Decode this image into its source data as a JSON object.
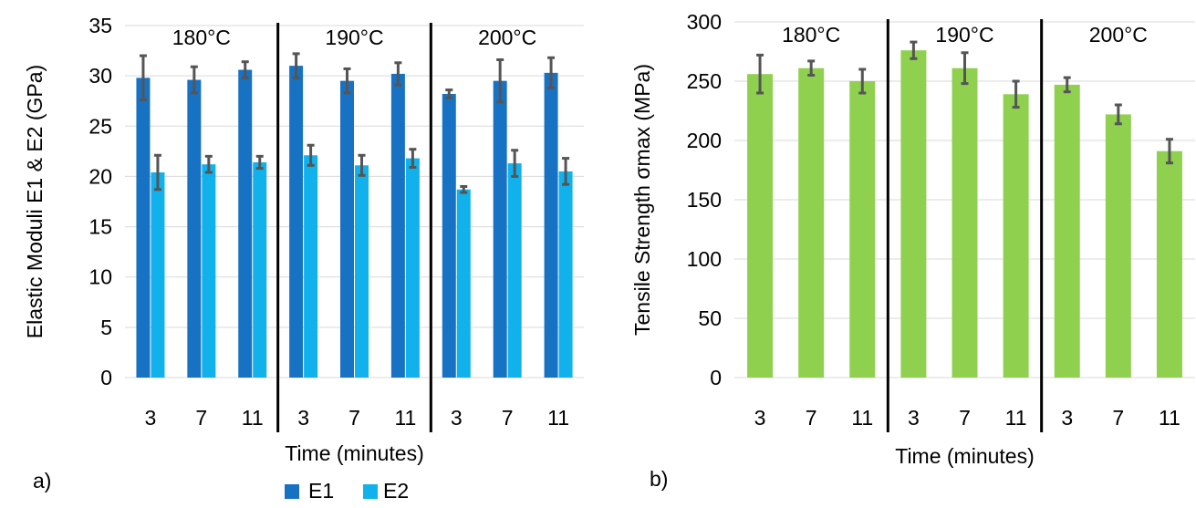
{
  "colors": {
    "e1": "#1872c4",
    "e2": "#11b1ec",
    "tensile": "#8fd14f",
    "error": "#555555",
    "grid": "#d9d9d9"
  },
  "chart_data": [
    {
      "type": "bar",
      "panel_label": "a)",
      "xlabel": "Time (minutes)",
      "ylabel": "Elastic Moduli E1 & E2 (GPa)",
      "ylim": [
        0,
        35
      ],
      "yticks": [
        0,
        5,
        10,
        15,
        20,
        25,
        30,
        35
      ],
      "grid": true,
      "legend_position": "bottom",
      "groups": [
        "180°C",
        "190°C",
        "200°C"
      ],
      "categories": [
        "3",
        "7",
        "11",
        "3",
        "7",
        "11",
        "3",
        "7",
        "11"
      ],
      "series": [
        {
          "name": "E1",
          "values": [
            29.8,
            29.6,
            30.6,
            31.0,
            29.5,
            30.2,
            28.2,
            29.5,
            30.3
          ],
          "errors": [
            2.2,
            1.3,
            0.8,
            1.2,
            1.2,
            1.1,
            0.4,
            2.1,
            1.5
          ]
        },
        {
          "name": "E2",
          "values": [
            20.4,
            21.2,
            21.4,
            22.1,
            21.1,
            21.8,
            18.7,
            21.3,
            20.5
          ],
          "errors": [
            1.7,
            0.8,
            0.6,
            1.0,
            1.0,
            0.9,
            0.3,
            1.3,
            1.3
          ]
        }
      ]
    },
    {
      "type": "bar",
      "panel_label": "b)",
      "xlabel": "Time (minutes)",
      "ylabel": "Tensile Strength σmax (MPa)",
      "ylim": [
        0,
        300
      ],
      "yticks": [
        0,
        50,
        100,
        150,
        200,
        250,
        300
      ],
      "grid": true,
      "groups": [
        "180°C",
        "190°C",
        "200°C"
      ],
      "categories": [
        "3",
        "7",
        "11",
        "3",
        "7",
        "11",
        "3",
        "7",
        "11"
      ],
      "series": [
        {
          "values": [
            256,
            261,
            250,
            276,
            261,
            239,
            247,
            222,
            191
          ],
          "errors": [
            16,
            6,
            10,
            7,
            13,
            11,
            6,
            8,
            10
          ]
        }
      ]
    }
  ]
}
